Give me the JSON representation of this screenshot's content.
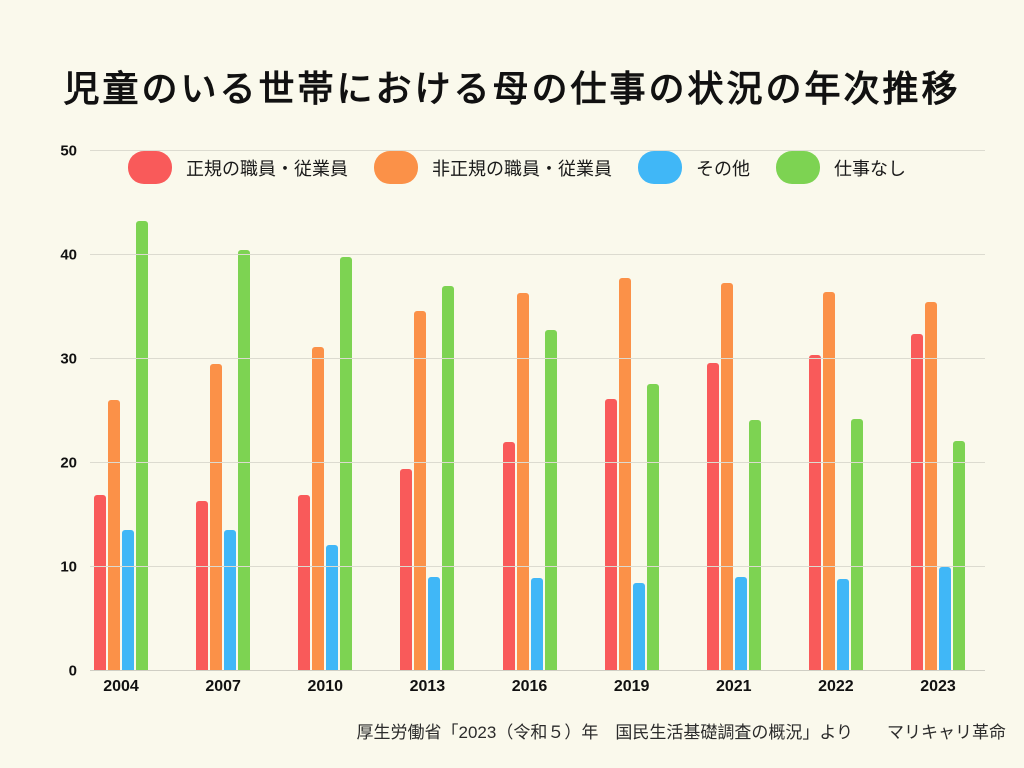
{
  "title": "児童のいる世帯における母の仕事の状況の年次推移",
  "source_note": "厚生労働省「2023（令和５）年　国民生活基礎調査の概況」より",
  "brand": "マリキャリ革命",
  "colors": {
    "background": "#FAF9EC",
    "gridline": "#DCDBD0",
    "text": "#111111"
  },
  "chart_data": {
    "type": "bar",
    "title": "児童のいる世帯における母の仕事の状況の年次推移",
    "categories": [
      "2004",
      "2007",
      "2010",
      "2013",
      "2016",
      "2019",
      "2021",
      "2022",
      "2023"
    ],
    "series": [
      {
        "name": "正規の職員・従業員",
        "color": "#F95A5A",
        "values": [
          16.9,
          16.3,
          16.9,
          19.4,
          22.0,
          26.2,
          29.6,
          30.4,
          32.4
        ]
      },
      {
        "name": "非正規の職員・従業員",
        "color": "#FB9148",
        "values": [
          26.1,
          29.5,
          31.2,
          34.6,
          36.3,
          37.8,
          37.3,
          36.4,
          35.5
        ]
      },
      {
        "name": "その他",
        "color": "#40B7F7",
        "values": [
          13.6,
          13.6,
          12.1,
          9.0,
          8.9,
          8.5,
          9.0,
          8.8,
          10.0
        ]
      },
      {
        "name": "仕事なし",
        "color": "#7DD352",
        "values": [
          43.3,
          40.5,
          39.8,
          37.0,
          32.8,
          27.6,
          24.1,
          24.2,
          22.1
        ]
      }
    ],
    "xlabel": "",
    "ylabel": "",
    "ylim": [
      0,
      50
    ],
    "ytick_step": 10,
    "grid": true,
    "legend_position": "top"
  }
}
